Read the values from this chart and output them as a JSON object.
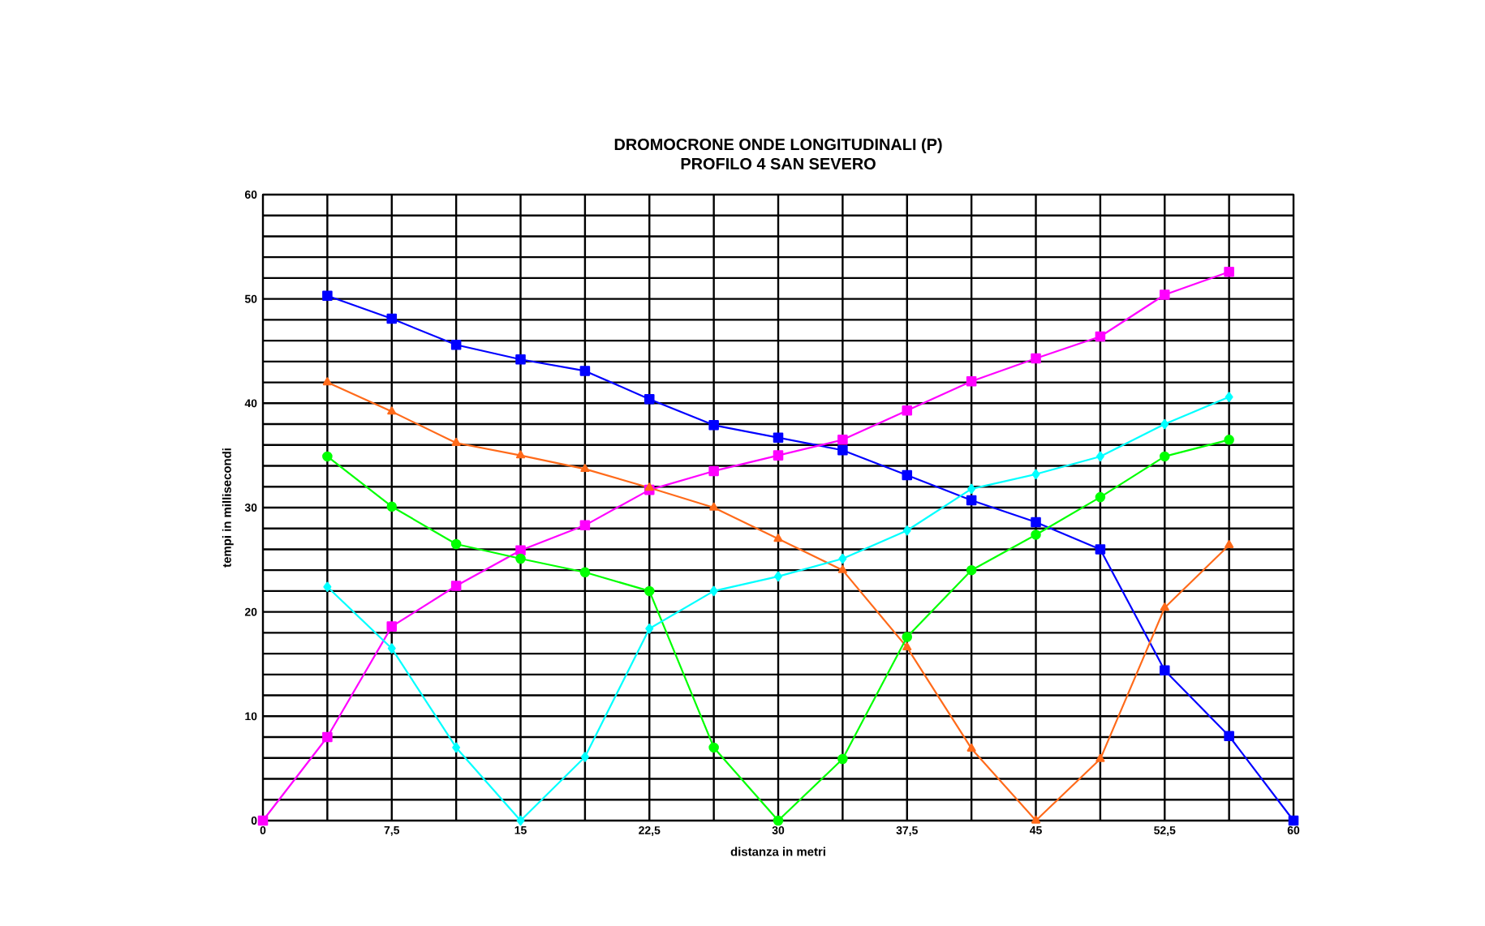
{
  "chart_data": {
    "type": "line",
    "title": "DROMOCRONE ONDE LONGITUDINALI (P)",
    "subtitle": "PROFILO 4 SAN SEVERO",
    "xlabel": "distanza in metri",
    "ylabel": "tempi in millisecondi",
    "xlim": [
      0,
      60
    ],
    "ylim": [
      0,
      60
    ],
    "xticks": [
      0,
      {
        "value": 3.75,
        "label": null
      },
      {
        "value": 7.5,
        "label": "7,5"
      },
      {
        "value": 11.25,
        "label": null
      },
      15,
      {
        "value": 18.75,
        "label": null
      },
      {
        "value": 22.5,
        "label": "22,5"
      },
      {
        "value": 26.25,
        "label": null
      },
      30,
      {
        "value": 33.75,
        "label": null
      },
      {
        "value": 37.5,
        "label": "37,5"
      },
      {
        "value": 41.25,
        "label": null
      },
      45,
      {
        "value": 48.75,
        "label": null
      },
      {
        "value": 52.5,
        "label": "52,5"
      },
      {
        "value": 56.25,
        "label": null
      },
      60
    ],
    "yticks": [
      0,
      {
        "value": 2,
        "label": null
      },
      {
        "value": 4,
        "label": null
      },
      {
        "value": 6,
        "label": null
      },
      {
        "value": 8,
        "label": null
      },
      10,
      {
        "value": 12,
        "label": null
      },
      {
        "value": 14,
        "label": null
      },
      {
        "value": 16,
        "label": null
      },
      {
        "value": 18,
        "label": null
      },
      20,
      {
        "value": 22,
        "label": null
      },
      {
        "value": 24,
        "label": null
      },
      {
        "value": 26,
        "label": null
      },
      {
        "value": 28,
        "label": null
      },
      30,
      {
        "value": 32,
        "label": null
      },
      {
        "value": 34,
        "label": null
      },
      {
        "value": 36,
        "label": null
      },
      {
        "value": 38,
        "label": null
      },
      40,
      {
        "value": 42,
        "label": null
      },
      {
        "value": 44,
        "label": null
      },
      {
        "value": 46,
        "label": null
      },
      {
        "value": 48,
        "label": null
      },
      50,
      {
        "value": 52,
        "label": null
      },
      {
        "value": 54,
        "label": null
      },
      {
        "value": 56,
        "label": null
      },
      {
        "value": 58,
        "label": null
      },
      60
    ],
    "grid": true,
    "line_style": "solid",
    "series": [
      {
        "color": "#0000ff",
        "marker": "square",
        "x": [
          3.75,
          7.5,
          11.25,
          15,
          18.75,
          22.5,
          26.25,
          30,
          33.75,
          37.5,
          41.25,
          45,
          48.75,
          52.5,
          56.25,
          60
        ],
        "values": [
          50.3,
          48.1,
          45.6,
          44.2,
          43.1,
          40.4,
          37.9,
          36.7,
          35.5,
          33.1,
          30.7,
          28.6,
          26,
          14.4,
          8.1,
          0
        ]
      },
      {
        "color": "#ff00ff",
        "marker": "square",
        "x": [
          0,
          3.75,
          7.5,
          11.25,
          15,
          18.75,
          22.5,
          26.25,
          30,
          33.75,
          37.5,
          41.25,
          45,
          48.75,
          52.5,
          56.25
        ],
        "values": [
          0,
          8,
          18.6,
          22.5,
          25.9,
          28.3,
          31.7,
          33.5,
          35,
          36.5,
          39.3,
          42.1,
          44.3,
          46.4,
          50.4,
          52.6
        ]
      },
      {
        "color": "#ff6a1a",
        "marker": "triangle",
        "x": [
          3.75,
          7.5,
          11.25,
          15,
          18.75,
          22.5,
          26.25,
          30,
          33.75,
          37.5,
          41.25,
          45,
          48.75,
          52.5,
          56.25
        ],
        "values": [
          42,
          39.2,
          36.2,
          35,
          33.7,
          31.9,
          30,
          27,
          24,
          16.6,
          6.9,
          0,
          5.9,
          20.4,
          26.4
        ]
      },
      {
        "color": "#00ff00",
        "marker": "circle",
        "x": [
          3.75,
          7.5,
          11.25,
          15,
          18.75,
          22.5,
          26.25,
          30,
          33.75,
          37.5,
          41.25,
          45,
          48.75,
          52.5,
          56.25
        ],
        "values": [
          34.9,
          30.1,
          26.5,
          25.1,
          23.8,
          22,
          7,
          0,
          5.9,
          17.6,
          24,
          27.4,
          31,
          34.9,
          36.5
        ]
      },
      {
        "color": "#00ffff",
        "marker": "diamond",
        "x": [
          3.75,
          7.5,
          11.25,
          15,
          18.75,
          22.5,
          26.25,
          30,
          33.75,
          37.5,
          41.25,
          45,
          48.75,
          52.5,
          56.25
        ],
        "values": [
          22.4,
          16.5,
          7,
          0,
          6.1,
          18.4,
          22,
          23.4,
          25.1,
          27.8,
          31.8,
          33.2,
          34.9,
          38,
          40.6
        ]
      }
    ]
  }
}
